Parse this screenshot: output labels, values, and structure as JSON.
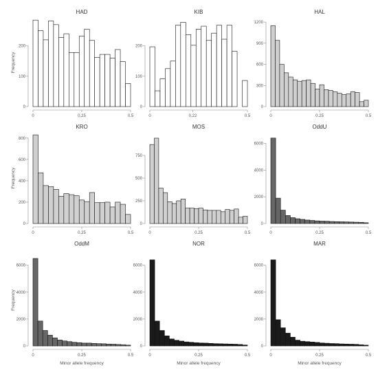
{
  "chart_data": [
    {
      "type": "bar",
      "title": "HAD",
      "fill": "#ffffff",
      "ylabel": "Frequency",
      "xlabel": "",
      "xlim": [
        0,
        0.5
      ],
      "ylim": [
        0,
        290
      ],
      "yticks": [
        0,
        100,
        200
      ],
      "xticks": [
        {
          "value": 0,
          "label": "0"
        },
        {
          "value": 0.25,
          "label": "0.25"
        },
        {
          "value": 0.5,
          "label": "0.5"
        }
      ],
      "values": [
        285,
        250,
        220,
        282,
        270,
        228,
        240,
        178,
        178,
        232,
        255,
        218,
        162,
        172,
        172,
        160,
        188,
        148,
        76
      ]
    },
    {
      "type": "bar",
      "title": "KIB",
      "fill": "#ffffff",
      "ylabel": "",
      "xlabel": "",
      "xlim": [
        0,
        0.5
      ],
      "ylim": [
        0,
        290
      ],
      "yticks": [
        0,
        100,
        200
      ],
      "xticks": [
        {
          "value": 0,
          "label": "0"
        },
        {
          "value": 0.22,
          "label": "0.22"
        },
        {
          "value": 0.5,
          "label": "0.5"
        }
      ],
      "values": [
        197,
        52,
        92,
        125,
        150,
        268,
        278,
        237,
        202,
        255,
        265,
        218,
        242,
        268,
        222,
        268,
        182,
        0,
        86
      ]
    },
    {
      "type": "bar",
      "title": "HAL",
      "fill": "#d0d0d0",
      "ylabel": "",
      "xlabel": "",
      "xlim": [
        0,
        0.5
      ],
      "ylim": [
        0,
        1250
      ],
      "yticks": [
        0,
        300,
        600,
        900,
        1200
      ],
      "xticks": [
        {
          "value": 0,
          "label": "0"
        },
        {
          "value": 0.25,
          "label": "0.25"
        },
        {
          "value": 0.5,
          "label": "0.5"
        }
      ],
      "values": [
        1150,
        940,
        600,
        480,
        420,
        380,
        360,
        370,
        380,
        330,
        250,
        310,
        240,
        230,
        210,
        190,
        170,
        180,
        210,
        200,
        70,
        90
      ]
    },
    {
      "type": "bar",
      "title": "KRO",
      "fill": "#d0d0d0",
      "ylabel": "Frequency",
      "xlabel": "",
      "xlim": [
        0,
        0.5
      ],
      "ylim": [
        0,
        850
      ],
      "yticks": [
        0,
        200,
        400,
        600,
        800
      ],
      "xticks": [
        {
          "value": 0,
          "label": "0"
        },
        {
          "value": 0.25,
          "label": "0.25"
        },
        {
          "value": 0.5,
          "label": "0.5"
        }
      ],
      "values": [
        830,
        475,
        355,
        345,
        320,
        255,
        280,
        270,
        260,
        220,
        205,
        290,
        195,
        195,
        200,
        155,
        200,
        180,
        85
      ]
    },
    {
      "type": "bar",
      "title": "MOS",
      "fill": "#d0d0d0",
      "ylabel": "",
      "xlabel": "",
      "xlim": [
        0,
        0.5
      ],
      "ylim": [
        0,
        1000
      ],
      "yticks": [
        0,
        250,
        500,
        750
      ],
      "xticks": [
        {
          "value": 0,
          "label": "0"
        },
        {
          "value": 0.25,
          "label": "0.25"
        },
        {
          "value": 0.5,
          "label": "0.5"
        }
      ],
      "values": [
        870,
        940,
        390,
        340,
        240,
        220,
        250,
        270,
        170,
        170,
        165,
        170,
        150,
        145,
        145,
        145,
        130,
        155,
        145,
        160,
        70,
        80
      ]
    },
    {
      "type": "bar",
      "title": "OddU",
      "fill": "#666666",
      "ylabel": "",
      "xlabel": "",
      "xlim": [
        0,
        0.5
      ],
      "ylim": [
        0,
        6800
      ],
      "yticks": [
        0,
        2000,
        4000,
        6000
      ],
      "xticks": [
        {
          "value": 0,
          "label": "0"
        },
        {
          "value": 0.25,
          "label": "0.25"
        },
        {
          "value": 0.5,
          "label": "0.5"
        }
      ],
      "values": [
        6400,
        1900,
        1000,
        600,
        440,
        360,
        310,
        260,
        230,
        200,
        180,
        170,
        150,
        140,
        130,
        120,
        110,
        100,
        90,
        60
      ]
    },
    {
      "type": "bar",
      "title": "OddM",
      "fill": "#666666",
      "ylabel": "Frequency",
      "xlabel": "Minor allele frequency",
      "xlim": [
        0,
        0.5
      ],
      "ylim": [
        0,
        6800
      ],
      "yticks": [
        0,
        2000,
        4000,
        6000
      ],
      "xticks": [
        {
          "value": 0,
          "label": "0"
        },
        {
          "value": 0.25,
          "label": "0.25"
        },
        {
          "value": 0.5,
          "label": "0.5"
        }
      ],
      "values": [
        6500,
        1850,
        1150,
        800,
        600,
        440,
        370,
        320,
        270,
        240,
        210,
        210,
        190,
        170,
        160,
        140,
        130,
        110,
        90,
        60
      ]
    },
    {
      "type": "bar",
      "title": "NOR",
      "fill": "#1a1a1a",
      "ylabel": "",
      "xlabel": "Minor allele frequency",
      "xlim": [
        0,
        0.5
      ],
      "ylim": [
        0,
        6800
      ],
      "yticks": [
        0,
        2000,
        4000,
        6000
      ],
      "xticks": [
        {
          "value": 0,
          "label": "0"
        },
        {
          "value": 0.25,
          "label": "0.25"
        },
        {
          "value": 0.5,
          "label": "0.5"
        }
      ],
      "values": [
        6400,
        1850,
        1150,
        750,
        520,
        420,
        360,
        300,
        270,
        240,
        220,
        210,
        190,
        170,
        160,
        150,
        140,
        130,
        110,
        70
      ]
    },
    {
      "type": "bar",
      "title": "MAR",
      "fill": "#1a1a1a",
      "ylabel": "",
      "xlabel": "Minor allele frequency",
      "xlim": [
        0,
        0.5
      ],
      "ylim": [
        0,
        6800
      ],
      "yticks": [
        0,
        2000,
        4000,
        6000
      ],
      "xticks": [
        {
          "value": 0,
          "label": "0"
        },
        {
          "value": 0.25,
          "label": "0.25"
        },
        {
          "value": 0.5,
          "label": "0.5"
        }
      ],
      "values": [
        6400,
        1950,
        1350,
        950,
        650,
        430,
        350,
        320,
        290,
        260,
        220,
        200,
        180,
        170,
        150,
        140,
        130,
        120,
        90,
        60
      ]
    }
  ]
}
